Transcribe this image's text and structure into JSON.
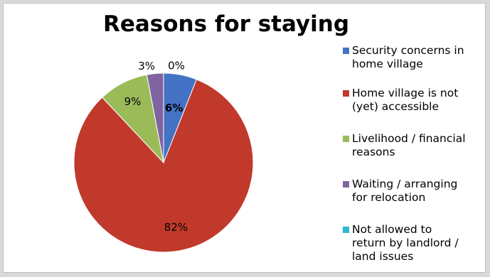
{
  "chart_data": {
    "type": "pie",
    "title": "Reasons for staying",
    "categories": [
      "Security concerns in home village",
      "Home village is not (yet) accessible",
      "Livelihood / financial reasons",
      "Waiting / arranging for relocation",
      "Not allowed to return by landlord / land issues"
    ],
    "legend_labels": [
      "Security concerns in\nhome village",
      "Home village is not\n(yet) accessible",
      "Livelihood / financial\nreasons",
      "Waiting / arranging\nfor relocation",
      "Not allowed to\nreturn by landlord /\nland issues"
    ],
    "values": [
      6,
      82,
      9,
      3,
      0
    ],
    "data_labels": [
      "6%",
      "82%",
      "9%",
      "3%",
      "0%"
    ],
    "colors": [
      "#4472c4",
      "#c0392b",
      "#9bbb59",
      "#8064a2",
      "#31b6d3"
    ],
    "legend_position": "right",
    "start_angle_deg": 0,
    "direction": "clockwise"
  }
}
